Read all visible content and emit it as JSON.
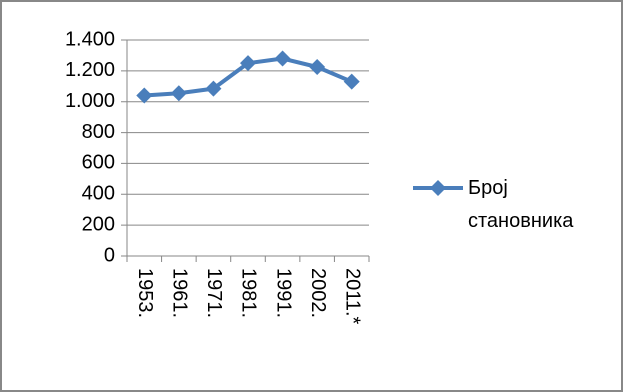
{
  "chart_data": {
    "type": "line",
    "categories": [
      "1953.",
      "1961.",
      "1971.",
      "1981.",
      "1991.",
      "2002.",
      "2011.*"
    ],
    "series": [
      {
        "name": "Број становника",
        "color": "#4a7ebb",
        "values": [
          1040,
          1055,
          1085,
          1250,
          1280,
          1225,
          1130
        ]
      }
    ],
    "ylim": [
      0,
      1400
    ],
    "yticks": [
      0,
      200,
      400,
      600,
      800,
      {
        "value": 1000,
        "label": "1.000"
      },
      {
        "value": 1200,
        "label": "1.200"
      },
      {
        "value": 1400,
        "label": "1.400"
      }
    ],
    "grid": true,
    "legend": "right"
  }
}
